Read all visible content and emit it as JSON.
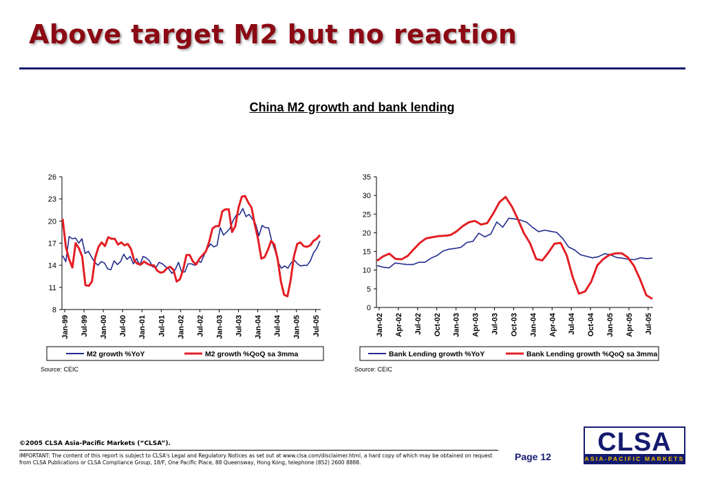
{
  "slide": {
    "title": "Above target M2 but no reaction",
    "heading": "China M2 growth and bank lending",
    "page_label": "Page 12",
    "copyright": "©2005 CLSA Asia-Pacific Markets (“CLSA”).",
    "disclaimer": "IMPORTANT: The content of this report is subject to CLSA's Legal and Regulatory Notices as set out at www.clsa.com/disclaimer.html, a hard copy of which may be obtained on request from CLSA Publications or CLSA Compliance Group, 18/F, One Pacific Place, 88 Queensway, Hong Kong, telephone (852) 2600 8888.",
    "logo": {
      "main": "CLSA",
      "sub": "ASIA-PACIFIC MARKETS"
    }
  },
  "colors": {
    "title": "#8b0a14",
    "navy": "#141a6e",
    "series_blue": "#1f2a8c",
    "series_red": "#e31e24",
    "logo_gold": "#f2c200"
  },
  "chart_data": [
    {
      "type": "line",
      "source": "Source: CEIC",
      "x_tick_labels": [
        "Jan-99",
        "Jul-99",
        "Jan-00",
        "Jul-00",
        "Jan-01",
        "Jul-01",
        "Jan-02",
        "Jul-02",
        "Jan-03",
        "Jul-03",
        "Jan-04",
        "Jul-04",
        "Jan-05",
        "Jul-05"
      ],
      "ylim": [
        8,
        26
      ],
      "y_ticks": [
        8,
        11,
        14,
        17,
        20,
        23,
        26
      ],
      "grid": false,
      "legend_position": "bottom",
      "series": [
        {
          "name": "M2 growth %YoY",
          "color": "#1f2a8c",
          "values": [
            15.3,
            14.5,
            17.9,
            17.6,
            17.7,
            17.0,
            17.6,
            15.6,
            15.9,
            15.1,
            14.4,
            14.0,
            14.5,
            14.3,
            13.5,
            13.4,
            14.6,
            14.1,
            14.5,
            15.5,
            14.8,
            15.2,
            14.2,
            14.9,
            14.0,
            15.2,
            15.0,
            14.6,
            13.8,
            13.7,
            14.4,
            14.2,
            13.8,
            13.5,
            12.9,
            13.4,
            14.4,
            13.1,
            13.1,
            14.2,
            14.2,
            14.0,
            14.6,
            14.4,
            15.4,
            16.3,
            16.9,
            16.5,
            16.7,
            19.1,
            18.1,
            18.5,
            19.0,
            20.1,
            20.8,
            20.9,
            21.7,
            20.6,
            20.9,
            20.3,
            19.6,
            18.0,
            19.4,
            19.1,
            19.1,
            17.3,
            16.0,
            14.4,
            13.6,
            13.9,
            13.6,
            14.3,
            14.7,
            14.2,
            13.9,
            14.0,
            14.0,
            14.6,
            15.7,
            16.3,
            17.3
          ]
        },
        {
          "name": "M2 growth %QoQ sa 3mma",
          "color": "#e31e24",
          "values": [
            20.3,
            16.5,
            14.8,
            13.7,
            17.0,
            16.3,
            15.2,
            11.3,
            11.2,
            11.8,
            15.0,
            16.5,
            17.1,
            16.6,
            17.8,
            17.6,
            17.6,
            16.8,
            17.1,
            16.7,
            16.9,
            16.2,
            14.6,
            14.2,
            14.1,
            14.5,
            14.2,
            14.0,
            14.0,
            13.3,
            13.0,
            13.1,
            13.6,
            13.8,
            13.4,
            11.8,
            12.1,
            13.4,
            15.4,
            15.4,
            14.5,
            14.1,
            14.9,
            15.4,
            15.9,
            17.2,
            19.0,
            19.3,
            19.3,
            21.3,
            21.6,
            21.6,
            18.5,
            19.3,
            21.8,
            23.3,
            23.4,
            22.5,
            21.8,
            19.5,
            17.5,
            14.9,
            15.1,
            16.1,
            17.3,
            16.8,
            14.8,
            11.8,
            10.0,
            9.8,
            12.0,
            15.2,
            16.9,
            17.1,
            16.6,
            16.5,
            16.7,
            17.3,
            17.6,
            18.1
          ]
        }
      ],
      "legend": [
        "M2 growth %YoY",
        "M2 growth %QoQ sa 3mma"
      ]
    },
    {
      "type": "line",
      "source": "Source: CEIC",
      "x_tick_labels": [
        "Jan-02",
        "Apr-02",
        "Jul-02",
        "Oct-02",
        "Jan-03",
        "Apr-03",
        "Jul-03",
        "Oct-03",
        "Jan-04",
        "Apr-04",
        "Jul-04",
        "Oct-04",
        "Jan-05",
        "Apr-05",
        "Jul-05"
      ],
      "ylim": [
        0,
        35
      ],
      "y_ticks": [
        0,
        5,
        10,
        15,
        20,
        25,
        30,
        35
      ],
      "grid": false,
      "legend_position": "bottom",
      "series": [
        {
          "name": "Bank Lending growth %YoY",
          "color": "#1f2a8c",
          "values": [
            11.2,
            10.8,
            10.6,
            11.9,
            11.7,
            11.5,
            11.5,
            12.1,
            12.1,
            13.2,
            13.9,
            15.1,
            15.6,
            15.8,
            16.1,
            17.4,
            17.7,
            19.9,
            18.9,
            19.7,
            22.9,
            21.5,
            23.9,
            23.7,
            23.4,
            22.8,
            21.4,
            20.3,
            20.7,
            20.4,
            20.1,
            18.5,
            16.2,
            15.4,
            14.1,
            13.7,
            13.3,
            13.6,
            14.4,
            14.1,
            13.4,
            13.2,
            12.9,
            12.8,
            13.3,
            13.1,
            13.2
          ]
        },
        {
          "name": "Bank Lending growth %QoQ sa 3mma",
          "color": "#e31e24",
          "values": [
            12.5,
            13.7,
            14.4,
            13.0,
            12.9,
            13.8,
            15.6,
            17.3,
            18.5,
            18.8,
            19.1,
            19.2,
            19.4,
            20.4,
            21.8,
            22.8,
            23.2,
            22.2,
            22.6,
            25.2,
            28.2,
            29.6,
            27.1,
            23.7,
            19.9,
            17.2,
            13.0,
            12.6,
            14.7,
            17.1,
            17.3,
            13.9,
            8.0,
            3.7,
            4.3,
            6.9,
            11.3,
            13.0,
            14.1,
            14.5,
            14.5,
            13.4,
            11.1,
            7.5,
            3.3,
            2.3
          ]
        }
      ],
      "legend": [
        "Bank Lending growth %YoY",
        "Bank Lending growth %QoQ sa 3mma"
      ]
    }
  ]
}
